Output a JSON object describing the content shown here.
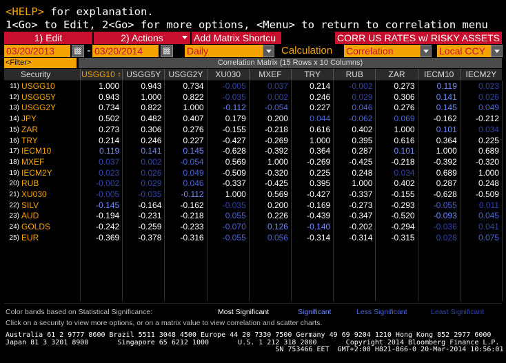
{
  "help": {
    "line1_key": "<HELP>",
    "line1_rest": " for explanation.",
    "line2": "1<Go> to Edit, 2<Go> for more options, <Menu> to return to correlation menu"
  },
  "menubar": {
    "edit": "1) Edit",
    "actions": "2) Actions",
    "add_matrix": "Add Matrix Shortcu",
    "title": "CORR US RATES w/ RISKY ASSETS"
  },
  "controls": {
    "start_date": "03/20/2013",
    "dash": "-",
    "end_date": "03/20/2014",
    "periodicity": "Daily",
    "calc_label": "Calculation",
    "calc_value": "Correlation",
    "currency": "Local CCY"
  },
  "filter_label": "<Filter>",
  "matrix_title": "Correlation Matrix (15 Rows x 10 Columns)",
  "header": {
    "security": "Security",
    "sort_indicator": "↑",
    "columns": [
      "USGG10",
      "USGG5Y",
      "USGG2Y",
      "XU030",
      "MXEF",
      "TRY",
      "RUB",
      "ZAR",
      "IECM10",
      "IECM2Y"
    ]
  },
  "colors": {
    "amber": "#f5a300",
    "red": "#c8102e",
    "most_significant": "#ffffff",
    "significant": "#6f8cff",
    "less_significant": "#4a66d6",
    "least_significant": "#2f44a8"
  },
  "rows": [
    {
      "num": "11)",
      "sec": "USGG10",
      "vals": [
        "1.000",
        "0.943",
        "0.734",
        "-0.005",
        "0.037",
        "0.214",
        "-0.002",
        "0.273",
        "0.119",
        "0.023"
      ],
      "lv": [
        0,
        0,
        0,
        3,
        3,
        0,
        3,
        0,
        1,
        3
      ]
    },
    {
      "num": "12)",
      "sec": "USGG5Y",
      "vals": [
        "0.943",
        "1.000",
        "0.822",
        "-0.035",
        "0.002",
        "0.246",
        "0.029",
        "0.306",
        "0.141",
        "0.026"
      ],
      "lv": [
        0,
        0,
        0,
        3,
        3,
        0,
        3,
        0,
        1,
        3
      ]
    },
    {
      "num": "13)",
      "sec": "USGG2Y",
      "vals": [
        "0.734",
        "0.822",
        "1.000",
        "-0.112",
        "-0.054",
        "0.227",
        "0.046",
        "0.276",
        "0.145",
        "0.049"
      ],
      "lv": [
        0,
        0,
        0,
        1,
        2,
        0,
        2,
        0,
        1,
        2
      ]
    },
    {
      "num": "14)",
      "sec": "JPY",
      "vals": [
        "0.502",
        "0.482",
        "0.407",
        "0.179",
        "0.200",
        "0.044",
        "-0.062",
        "0.069",
        "-0.162",
        "-0.212"
      ],
      "lv": [
        0,
        0,
        0,
        0,
        0,
        2,
        2,
        2,
        0,
        0
      ]
    },
    {
      "num": "15)",
      "sec": "ZAR",
      "vals": [
        "0.273",
        "0.306",
        "0.276",
        "-0.155",
        "-0.218",
        "0.616",
        "0.402",
        "1.000",
        "0.101",
        "0.034"
      ],
      "lv": [
        0,
        0,
        0,
        0,
        0,
        0,
        0,
        0,
        1,
        3
      ]
    },
    {
      "num": "16)",
      "sec": "TRY",
      "vals": [
        "0.214",
        "0.246",
        "0.227",
        "-0.427",
        "-0.269",
        "1.000",
        "0.395",
        "0.616",
        "0.364",
        "0.225"
      ],
      "lv": [
        0,
        0,
        0,
        0,
        0,
        0,
        0,
        0,
        0,
        0
      ]
    },
    {
      "num": "17)",
      "sec": "IECM10",
      "vals": [
        "0.119",
        "0.141",
        "0.145",
        "-0.628",
        "-0.392",
        "0.364",
        "0.287",
        "0.101",
        "1.000",
        "0.689"
      ],
      "lv": [
        1,
        1,
        1,
        0,
        0,
        0,
        0,
        1,
        0,
        0
      ]
    },
    {
      "num": "18)",
      "sec": "MXEF",
      "vals": [
        "0.037",
        "0.002",
        "-0.054",
        "0.569",
        "1.000",
        "-0.269",
        "-0.425",
        "-0.218",
        "-0.392",
        "-0.320"
      ],
      "lv": [
        3,
        3,
        2,
        0,
        0,
        0,
        0,
        0,
        0,
        0
      ]
    },
    {
      "num": "19)",
      "sec": "IECM2Y",
      "vals": [
        "0.023",
        "0.026",
        "0.049",
        "-0.509",
        "-0.320",
        "0.225",
        "0.248",
        "0.034",
        "0.689",
        "1.000"
      ],
      "lv": [
        3,
        3,
        2,
        0,
        0,
        0,
        0,
        3,
        0,
        0
      ]
    },
    {
      "num": "20)",
      "sec": "RUB",
      "vals": [
        "-0.002",
        "0.029",
        "0.046",
        "-0.337",
        "-0.425",
        "0.395",
        "1.000",
        "0.402",
        "0.287",
        "0.248"
      ],
      "lv": [
        3,
        3,
        2,
        0,
        0,
        0,
        0,
        0,
        0,
        0
      ]
    },
    {
      "num": "21)",
      "sec": "XU030",
      "vals": [
        "-0.005",
        "-0.035",
        "-0.112",
        "1.000",
        "0.569",
        "-0.427",
        "-0.337",
        "-0.155",
        "-0.628",
        "-0.509"
      ],
      "lv": [
        3,
        3,
        1,
        0,
        0,
        0,
        0,
        0,
        0,
        0
      ]
    },
    {
      "num": "22)",
      "sec": "SILV",
      "vals": [
        "-0.145",
        "-0.164",
        "-0.162",
        "-0.035",
        "0.200",
        "-0.169",
        "-0.273",
        "-0.293",
        "-0.055",
        "0.011"
      ],
      "lv": [
        1,
        0,
        0,
        3,
        0,
        0,
        0,
        0,
        2,
        3
      ]
    },
    {
      "num": "23)",
      "sec": "AUD",
      "vals": [
        "-0.194",
        "-0.231",
        "-0.218",
        "0.055",
        "0.226",
        "-0.439",
        "-0.347",
        "-0.520",
        "-0.093",
        "0.045"
      ],
      "lv": [
        0,
        0,
        0,
        2,
        0,
        0,
        0,
        0,
        1,
        2
      ]
    },
    {
      "num": "24)",
      "sec": "GOLDS",
      "vals": [
        "-0.242",
        "-0.259",
        "-0.233",
        "-0.070",
        "0.126",
        "-0.140",
        "-0.202",
        "-0.294",
        "-0.036",
        "0.041"
      ],
      "lv": [
        0,
        0,
        0,
        2,
        1,
        1,
        0,
        0,
        3,
        3
      ]
    },
    {
      "num": "25)",
      "sec": "EUR",
      "vals": [
        "-0.369",
        "-0.378",
        "-0.316",
        "-0.055",
        "0.056",
        "-0.314",
        "-0.314",
        "-0.315",
        "0.028",
        "0.075"
      ],
      "lv": [
        0,
        0,
        0,
        2,
        2,
        0,
        0,
        0,
        3,
        2
      ]
    }
  ],
  "legend": {
    "prefix": "Color bands based on Statistical Significance:",
    "most": "Most Significant",
    "sig": "Significant",
    "less": "Less Significant",
    "least": "Least Significant"
  },
  "click_hint": "Click on a security to view more options, or on a matrix value to view correlation and scatter charts.",
  "footer": {
    "line1": "Australia 61 2 9777 8600 Brazil 5511 3048 4500 Europe 44 20 7330 7500 Germany 49 69 9204 1210 Hong Kong 852 2977 6000",
    "line2": "Japan 81 3 3201 8900       Singapore 65 6212 1000       U.S. 1 212 318 2000       Copyright 2014 Bloomberg Finance L.P.",
    "line3": "                                                                 SN 753466 EET  GMT+2:00 H821-866-0 20-Mar-2014 10:56:01"
  }
}
